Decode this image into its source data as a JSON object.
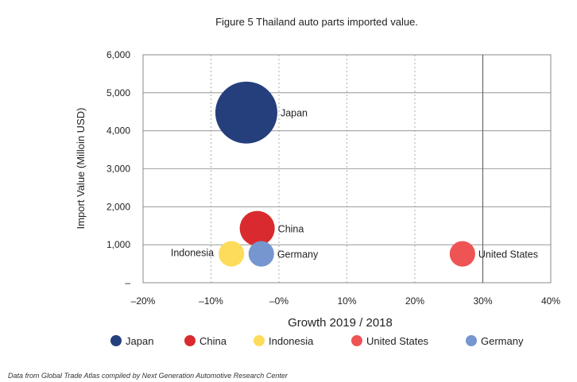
{
  "chart_data": {
    "type": "scatter",
    "title": "Figure 5 Thailand auto parts imported value.",
    "xlabel": "Growth 2019 / 2018",
    "ylabel": "Import Value (Milloin USD)",
    "xlim": [
      -20,
      40
    ],
    "ylim": [
      0,
      6000
    ],
    "x_ticks": [
      -20,
      -10,
      0,
      10,
      20,
      30,
      40
    ],
    "x_tick_labels": [
      "–20%",
      "–10%",
      "–0%",
      "10%",
      "20%",
      "30%",
      "40%"
    ],
    "y_ticks": [
      0,
      1000,
      2000,
      3000,
      4000,
      5000,
      6000
    ],
    "y_tick_labels": [
      "–",
      "1,000",
      "2,000",
      "3,000",
      "4,000",
      "5,000",
      "6,000"
    ],
    "grid": true,
    "legend_position": "bottom",
    "series": [
      {
        "name": "Japan",
        "label": "Japan",
        "x": -4.8,
        "y": 4480,
        "size": 4480,
        "color": "#253f7c"
      },
      {
        "name": "China",
        "label": "China",
        "x": -3.2,
        "y": 1430,
        "size": 1430,
        "color": "#d92b2f"
      },
      {
        "name": "Indonesia",
        "label": "Indonesia",
        "x": -7.0,
        "y": 760,
        "size": 760,
        "color": "#fddc5c"
      },
      {
        "name": "United States",
        "label": "United States",
        "x": 27.0,
        "y": 760,
        "size": 760,
        "color": "#ee5454"
      },
      {
        "name": "Germany",
        "label": "Germany",
        "x": -2.6,
        "y": 760,
        "size": 760,
        "color": "#7596cf"
      }
    ]
  },
  "footnote": "Data from Global Trade Atlas compiled by Next Generation Automotive Research Center"
}
